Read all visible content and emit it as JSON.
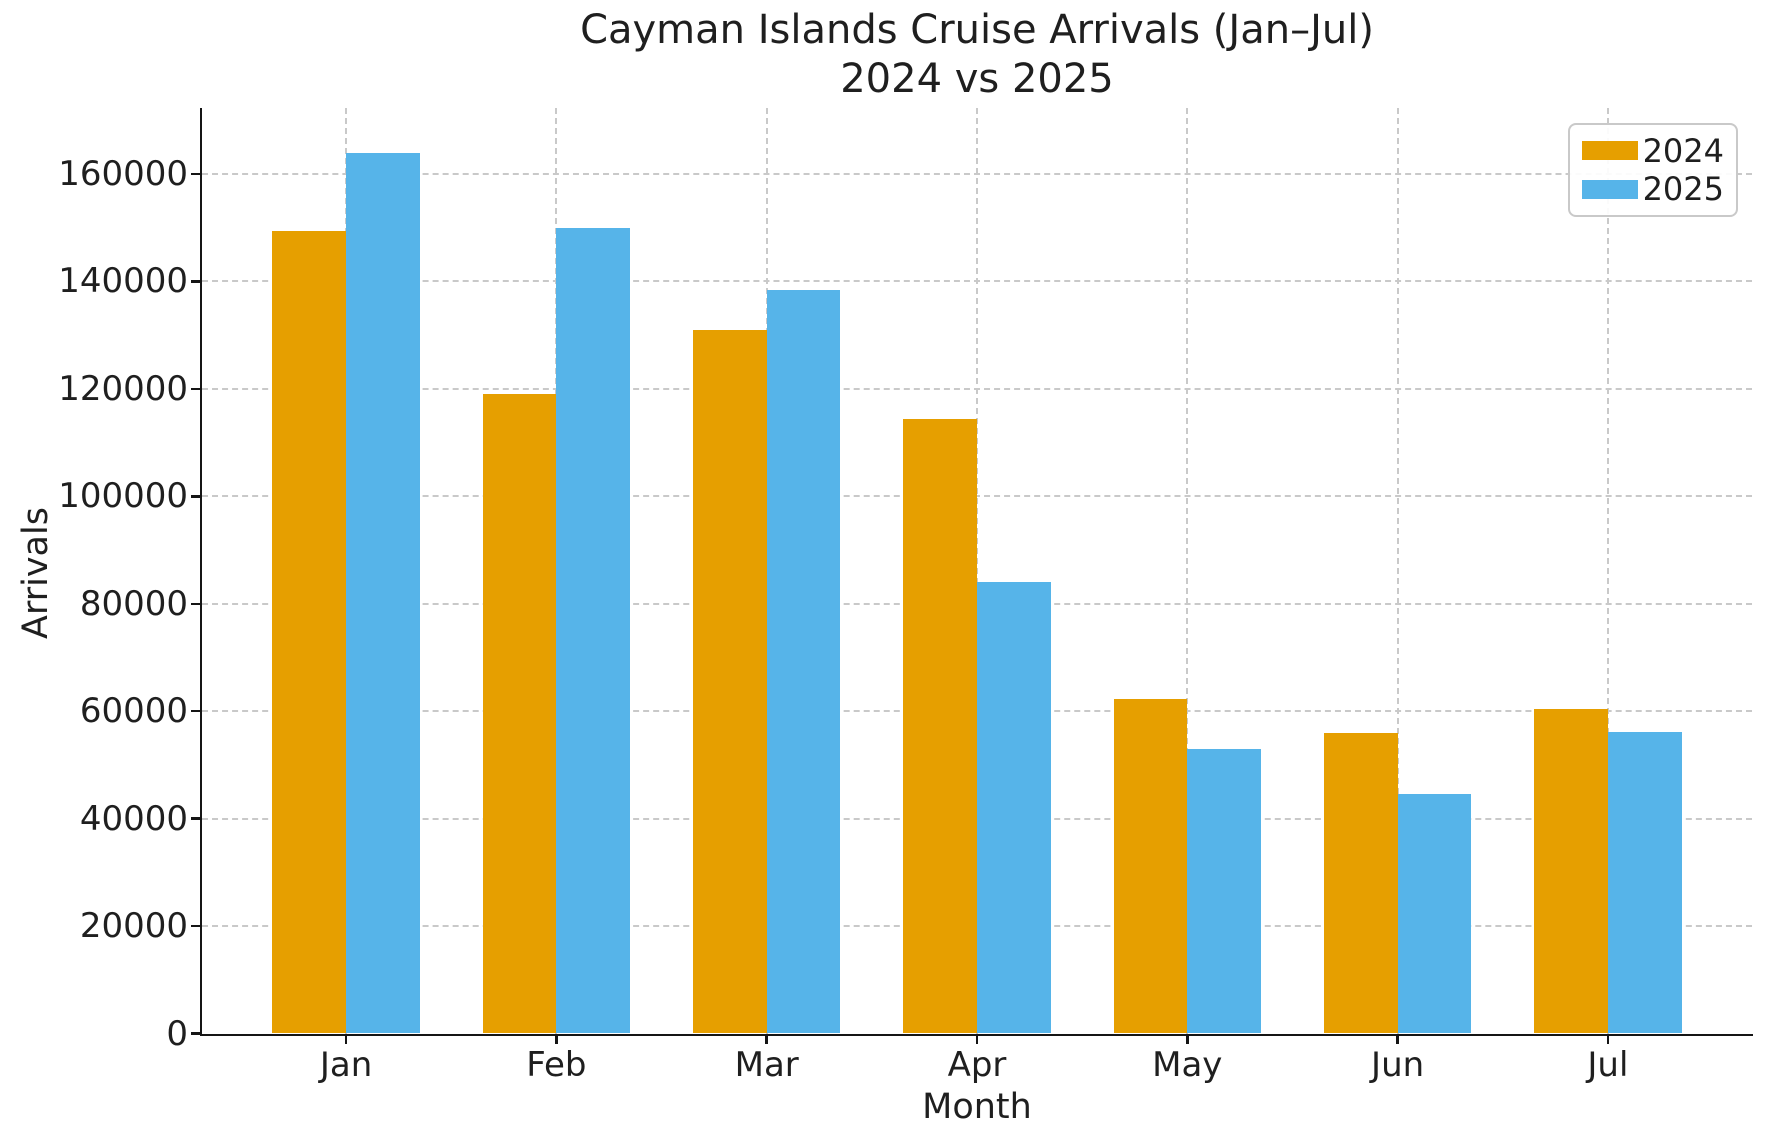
{
  "title": {
    "line1": "Cayman Islands Cruise Arrivals (Jan–Jul)",
    "line2": "2024 vs 2025"
  },
  "axes": {
    "xlabel": "Month",
    "ylabel": "Arrivals",
    "x_tick_labels": [
      "Jan",
      "Feb",
      "Mar",
      "Apr",
      "May",
      "Jun",
      "Jul"
    ],
    "y_tick_labels": [
      "0",
      "20000",
      "40000",
      "60000",
      "80000",
      "100000",
      "120000",
      "140000",
      "160000"
    ]
  },
  "legend": {
    "items": [
      {
        "label": "2024",
        "color": "#E69F00"
      },
      {
        "label": "2025",
        "color": "#56B4E9"
      }
    ]
  },
  "chart_data": {
    "type": "bar",
    "title": "Cayman Islands Cruise Arrivals (Jan–Jul)\n2024 vs 2025",
    "xlabel": "Month",
    "ylabel": "Arrivals",
    "categories": [
      "Jan",
      "Feb",
      "Mar",
      "Apr",
      "May",
      "Jun",
      "Jul"
    ],
    "series": [
      {
        "name": "2024",
        "color": "#E69F00",
        "values": [
          149400,
          119000,
          131000,
          114400,
          62200,
          56000,
          60500
        ]
      },
      {
        "name": "2025",
        "color": "#56B4E9",
        "values": [
          164000,
          150000,
          138500,
          84000,
          53000,
          44600,
          56200
        ]
      }
    ],
    "ylim": [
      0,
      172300
    ],
    "yticks": [
      0,
      20000,
      40000,
      60000,
      80000,
      100000,
      120000,
      140000,
      160000
    ],
    "grid": true,
    "grid_linestyle": "dashed",
    "legend_position": "upper right",
    "bar_width": 0.35
  },
  "colors": {
    "background": "#ffffff",
    "text": "#1f1f1f",
    "axis": "#151515",
    "gridline": "#c9c9c9",
    "series_2024": "#E69F00",
    "series_2025": "#56B4E9"
  }
}
